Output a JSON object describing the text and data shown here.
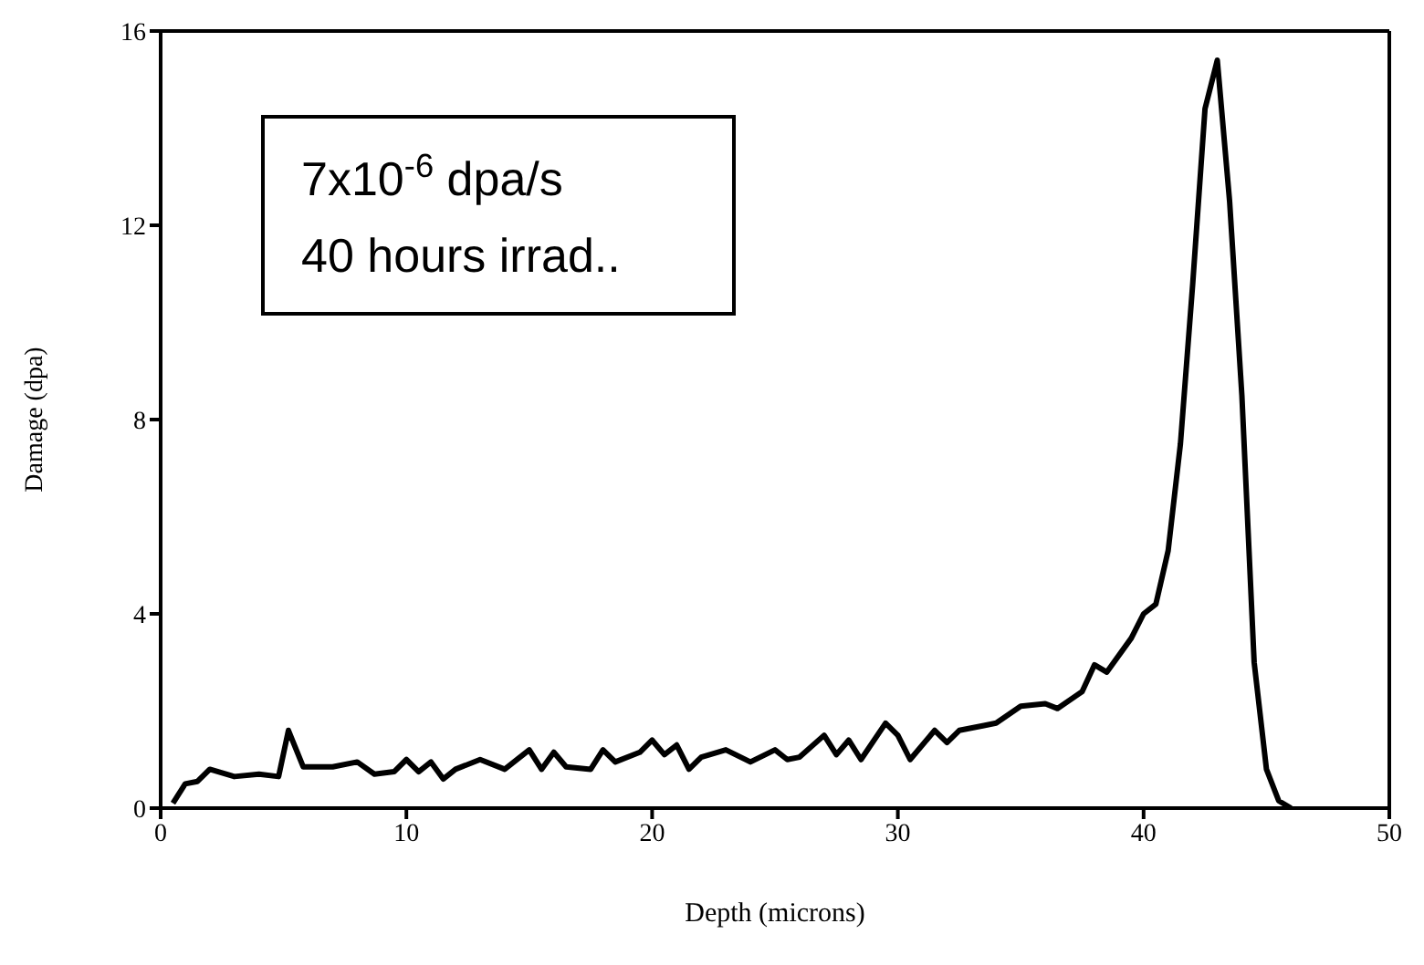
{
  "chart_data": {
    "type": "line",
    "xlabel": "Depth (microns)",
    "ylabel": "Damage (dpa)",
    "annotations": [
      "7x10$^{-6}$ dpa/s",
      "40 hours irrad.."
    ],
    "xlim": [
      0,
      50
    ],
    "xticks": [
      0,
      10,
      20,
      30,
      40,
      50
    ],
    "ylim": [
      0,
      16
    ],
    "yticks": [
      0,
      4,
      8,
      12,
      16
    ],
    "marker": "none",
    "line_style": "solid",
    "series": [
      {
        "color": "#000000",
        "x": [
          0.5,
          1,
          1.5,
          2,
          3,
          4,
          4.8,
          5.2,
          5.8,
          7,
          8,
          8.7,
          9.5,
          10,
          10.5,
          11,
          11.5,
          12,
          13,
          14,
          15,
          15.5,
          16,
          16.5,
          17.5,
          18,
          18.5,
          19.5,
          20,
          20.5,
          21,
          21.5,
          22,
          23,
          24,
          25,
          25.5,
          26,
          27,
          27.5,
          28,
          28.5,
          29.5,
          30,
          30.5,
          31.5,
          32,
          32.5,
          33.5,
          34,
          35,
          36,
          36.5,
          37.5,
          38,
          38.5,
          39.5,
          40,
          40.5,
          41,
          41.5,
          42,
          42.5,
          43,
          43.5,
          44,
          44.5,
          45,
          45.5,
          46
        ],
        "values": [
          0.1,
          0.5,
          0.55,
          0.8,
          0.65,
          0.7,
          0.65,
          1.6,
          0.85,
          0.85,
          0.95,
          0.7,
          0.75,
          1.0,
          0.75,
          0.95,
          0.6,
          0.8,
          1.0,
          0.8,
          1.2,
          0.8,
          1.15,
          0.85,
          0.8,
          1.2,
          0.95,
          1.15,
          1.4,
          1.1,
          1.3,
          0.8,
          1.05,
          1.2,
          0.95,
          1.2,
          1.0,
          1.05,
          1.5,
          1.1,
          1.4,
          1.0,
          1.75,
          1.5,
          1.0,
          1.6,
          1.35,
          1.6,
          1.7,
          1.75,
          2.1,
          2.15,
          2.05,
          2.4,
          2.95,
          2.8,
          3.5,
          4.0,
          4.2,
          5.3,
          7.5,
          10.8,
          14.4,
          15.4,
          12.5,
          8.5,
          3.0,
          0.8,
          0.15,
          0
        ]
      }
    ]
  }
}
